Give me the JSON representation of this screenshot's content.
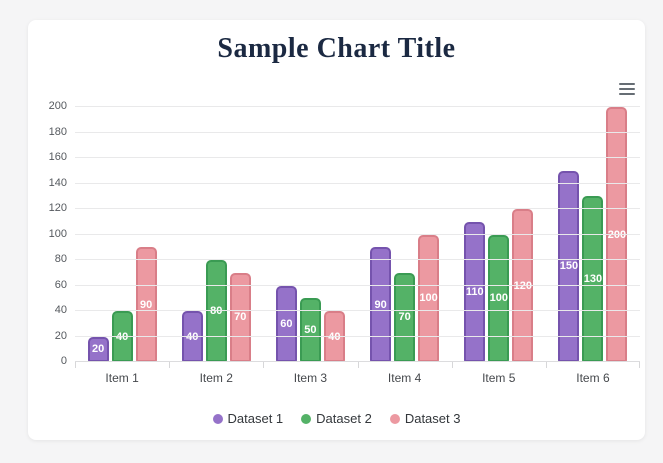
{
  "page": {
    "background": "#f5f5f6",
    "card_background": "#ffffff"
  },
  "toolbar": {
    "menu_icon": "hamburger-context-menu"
  },
  "chart_data": {
    "type": "bar",
    "title": "Sample Chart Title",
    "title_color": "#1b2942",
    "categories": [
      "Item 1",
      "Item 2",
      "Item 3",
      "Item 4",
      "Item 5",
      "Item 6"
    ],
    "series": [
      {
        "name": "Dataset 1",
        "color": "#9572c9",
        "border_color": "#7553ad",
        "values": [
          20,
          40,
          60,
          90,
          110,
          150
        ]
      },
      {
        "name": "Dataset 2",
        "color": "#54b267",
        "border_color": "#3a9b53",
        "values": [
          40,
          80,
          50,
          70,
          100,
          130
        ]
      },
      {
        "name": "Dataset 3",
        "color": "#ec99a1",
        "border_color": "#d97e88",
        "values": [
          90,
          70,
          40,
          100,
          120,
          200
        ]
      }
    ],
    "xlabel": "",
    "ylabel": "",
    "ylim": [
      0,
      200
    ],
    "yticks": [
      0,
      20,
      40,
      60,
      80,
      100,
      120,
      140,
      160,
      180,
      200
    ],
    "grid": true,
    "data_labels": "centered-white-bold",
    "legend_position": "bottom"
  }
}
